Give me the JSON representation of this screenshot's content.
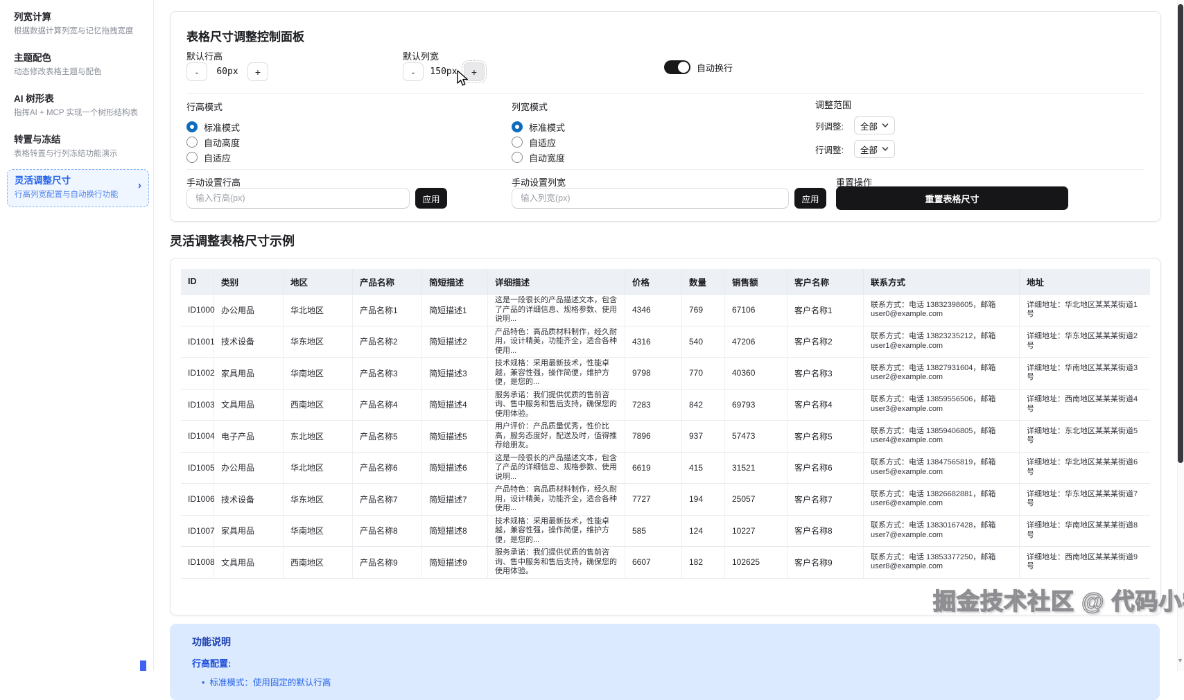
{
  "sidebar": {
    "items": [
      {
        "title": "列宽计算",
        "subtitle": "根据数据计算列宽与记忆拖拽宽度",
        "active": false
      },
      {
        "title": "主题配色",
        "subtitle": "动态修改表格主题与配色",
        "active": false
      },
      {
        "title": "AI 树形表",
        "subtitle": "指挥AI + MCP 实现一个树形结构表",
        "active": false
      },
      {
        "title": "转置与冻结",
        "subtitle": "表格转置与行列冻结功能演示",
        "active": false
      },
      {
        "title": "灵活调整尺寸",
        "subtitle": "行高列宽配置与自动换行功能",
        "active": true,
        "chevron": "›"
      }
    ]
  },
  "panel": {
    "title": "表格尺寸调整控制面板",
    "row_height": {
      "label": "默认行高",
      "minus": "-",
      "value": "60px",
      "plus": "+"
    },
    "col_width": {
      "label": "默认列宽",
      "minus": "-",
      "value": "150px",
      "plus": "+"
    },
    "wrap_toggle": {
      "label": "自动换行",
      "on": true
    },
    "row_mode": {
      "label": "行高模式",
      "options": [
        "标准模式",
        "自动高度",
        "自适应"
      ],
      "selected": 0
    },
    "col_mode": {
      "label": "列宽模式",
      "options": [
        "标准模式",
        "自适应",
        "自动宽度"
      ],
      "selected": 0
    },
    "range": {
      "label": "调整范围",
      "rows": [
        {
          "label": "列调整:",
          "value": "全部"
        },
        {
          "label": "行调整:",
          "value": "全部"
        }
      ]
    },
    "manual_row": {
      "label": "手动设置行高",
      "placeholder": "输入行高(px)",
      "apply": "应用"
    },
    "manual_col": {
      "label": "手动设置列宽",
      "placeholder": "输入列宽(px)",
      "apply": "应用"
    },
    "reset": {
      "label": "重置操作",
      "button": "重置表格尺寸"
    }
  },
  "section_title": "灵活调整表格尺寸示例",
  "table": {
    "headers": [
      "ID",
      "类别",
      "地区",
      "产品名称",
      "简短描述",
      "详细描述",
      "价格",
      "数量",
      "销售额",
      "客户名称",
      "联系方式",
      "地址"
    ],
    "rows": [
      [
        "ID1000",
        "办公用品",
        "华北地区",
        "产品名称1",
        "简短描述1",
        "这是一段很长的产品描述文本，包含了产品的详细信息、规格参数、使用说明...",
        "4346",
        "769",
        "67106",
        "客户名称1",
        "联系方式：电话 13832398605，邮箱 user0@example.com",
        "详细地址：华北地区某某某街道1号"
      ],
      [
        "ID1001",
        "技术设备",
        "华东地区",
        "产品名称2",
        "简短描述2",
        "产品特色：高品质材料制作，经久耐用，设计精美，功能齐全，适合各种使用...",
        "4316",
        "540",
        "47206",
        "客户名称2",
        "联系方式：电话 13823235212，邮箱 user1@example.com",
        "详细地址：华东地区某某某街道2号"
      ],
      [
        "ID1002",
        "家具用品",
        "华南地区",
        "产品名称3",
        "简短描述3",
        "技术规格：采用最新技术，性能卓越，兼容性强，操作简便，维护方便，是您的...",
        "9798",
        "770",
        "40360",
        "客户名称3",
        "联系方式：电话 13827931604，邮箱 user2@example.com",
        "详细地址：华南地区某某某街道3号"
      ],
      [
        "ID1003",
        "文具用品",
        "西南地区",
        "产品名称4",
        "简短描述4",
        "服务承诺：我们提供优质的售前咨询、售中服务和售后支持，确保您的使用体验。",
        "7283",
        "842",
        "69793",
        "客户名称4",
        "联系方式：电话 13859556506，邮箱 user3@example.com",
        "详细地址：西南地区某某某街道4号"
      ],
      [
        "ID1004",
        "电子产品",
        "东北地区",
        "产品名称5",
        "简短描述5",
        "用户评价：产品质量优秀，性价比高，服务态度好，配送及时，值得推荐给朋友。",
        "7896",
        "937",
        "57473",
        "客户名称5",
        "联系方式：电话 13859406805，邮箱 user4@example.com",
        "详细地址：东北地区某某某街道5号"
      ],
      [
        "ID1005",
        "办公用品",
        "华北地区",
        "产品名称6",
        "简短描述6",
        "这是一段很长的产品描述文本，包含了产品的详细信息、规格参数、使用说明...",
        "6619",
        "415",
        "31521",
        "客户名称6",
        "联系方式：电话 13847565819，邮箱 user5@example.com",
        "详细地址：华北地区某某某街道6号"
      ],
      [
        "ID1006",
        "技术设备",
        "华东地区",
        "产品名称7",
        "简短描述7",
        "产品特色：高品质材料制作，经久耐用，设计精美，功能齐全，适合各种使用...",
        "7727",
        "194",
        "25057",
        "客户名称7",
        "联系方式：电话 13826682881，邮箱 user6@example.com",
        "详细地址：华东地区某某某街道7号"
      ],
      [
        "ID1007",
        "家具用品",
        "华南地区",
        "产品名称8",
        "简短描述8",
        "技术规格：采用最新技术，性能卓越，兼容性强，操作简便，维护方便，是您的...",
        "585",
        "124",
        "10227",
        "客户名称8",
        "联系方式：电话 13830167428，邮箱 user7@example.com",
        "详细地址：华南地区某某某街道8号"
      ],
      [
        "ID1008",
        "文具用品",
        "西南地区",
        "产品名称9",
        "简短描述9",
        "服务承诺：我们提供优质的售前咨询、售中服务和售后支持，确保您的使用体验。",
        "6607",
        "182",
        "102625",
        "客户名称9",
        "联系方式：电话 13853377250，邮箱 user8@example.com",
        "详细地址：西南地区某某某街道9号"
      ]
    ]
  },
  "info": {
    "title": "功能说明",
    "subtitle": "行高配置:",
    "bullet": "标准模式：使用固定的默认行高"
  },
  "watermark": "掘金技术社区 @ 代码小学僧",
  "colors": {
    "accent_blue": "#2563eb",
    "radio_blue": "#0f6cbd",
    "button_black": "#161618",
    "header_bg": "#edf1f6",
    "info_bg": "#dbeafe"
  }
}
